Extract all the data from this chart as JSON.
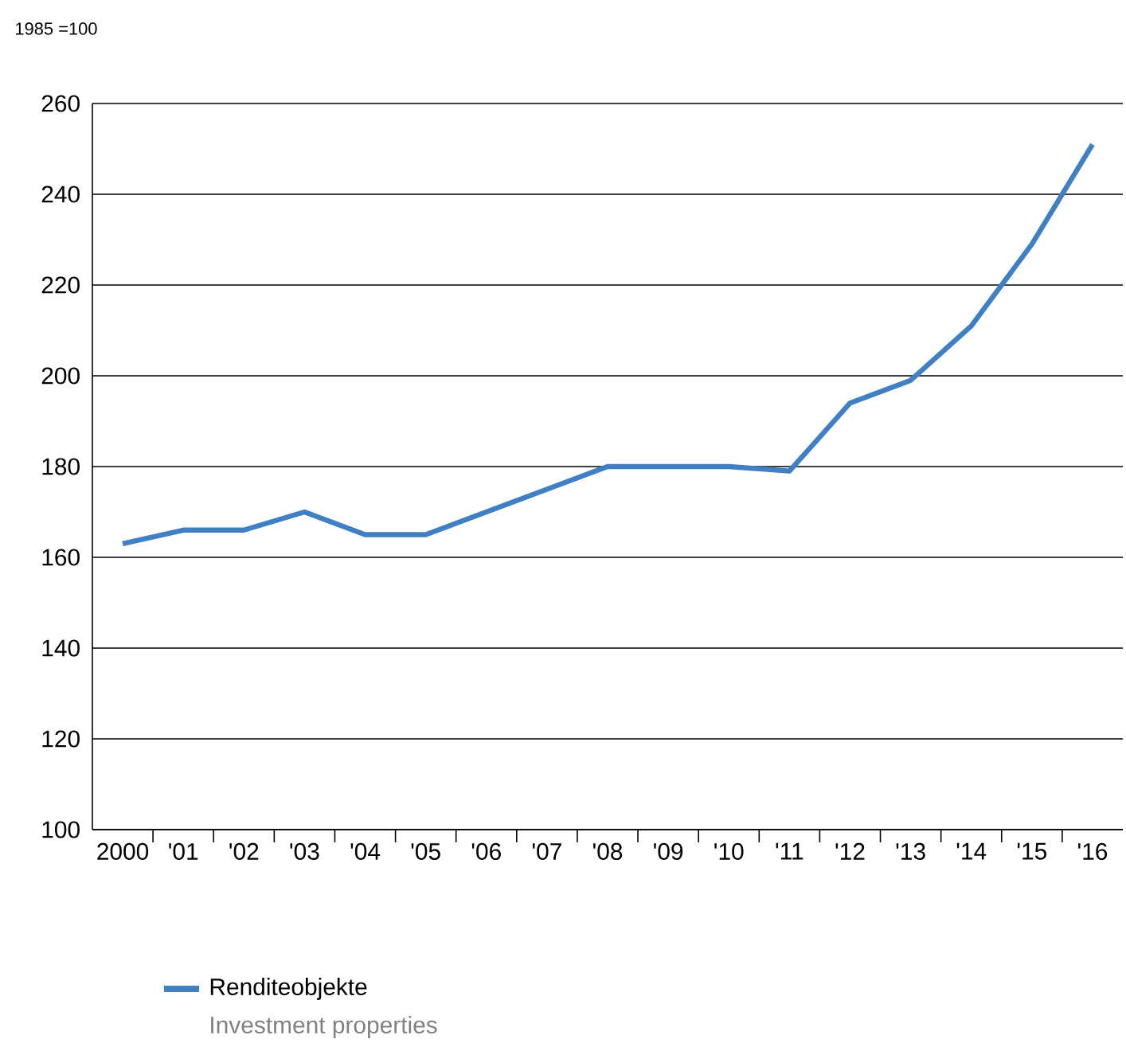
{
  "chart_data": {
    "type": "line",
    "ylabel": "1985 =100",
    "categories": [
      "2000",
      "'01",
      "'02",
      "'03",
      "'04",
      "'05",
      "'06",
      "'07",
      "'08",
      "'09",
      "'10",
      "'11",
      "'12",
      "'13",
      "'14",
      "'15",
      "'16"
    ],
    "series": [
      {
        "name": "Renditeobjekte",
        "color": "#3f7fc4",
        "values": [
          163,
          166,
          166,
          170,
          165,
          165,
          170,
          175,
          180,
          180,
          180,
          179,
          194,
          199,
          211,
          229,
          251
        ]
      }
    ],
    "annotations": [
      "Investment properties"
    ],
    "ylim": [
      100,
      260
    ],
    "yticks": [
      100,
      120,
      140,
      160,
      180,
      200,
      220,
      240,
      260
    ],
    "grid": "y",
    "legend": "bottom left",
    "marker": "none",
    "line_style": "solid"
  }
}
